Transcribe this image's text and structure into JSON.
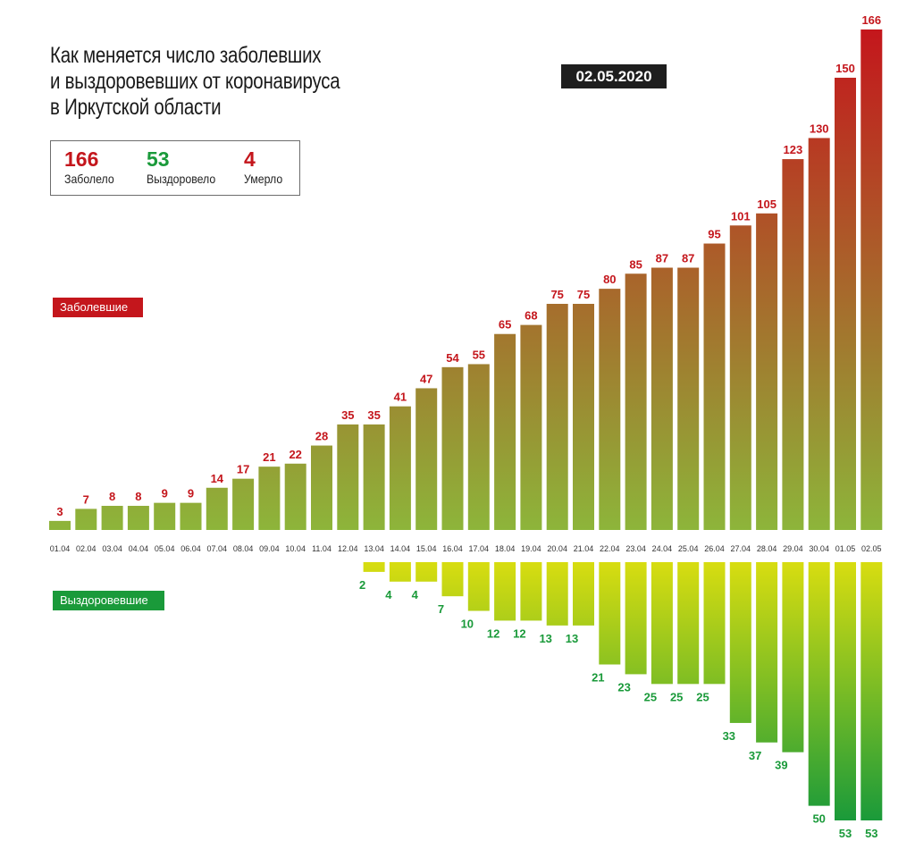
{
  "title": {
    "line1": "Как меняется число заболевших",
    "line2": "и выздоровевших от коронавируса",
    "line3": "в Иркутской области"
  },
  "date": "02.05.2020",
  "summary": {
    "cases": {
      "value": "166",
      "label": "Заболело"
    },
    "recovered": {
      "value": "53",
      "label": "Выздоровело"
    },
    "deaths": {
      "value": "4",
      "label": "Умерло"
    }
  },
  "legend": {
    "cases_label": "Заболевшие",
    "recovered_label": "Выздоровевшие"
  },
  "colors": {
    "cases_top": "#c4161c",
    "cases_bottom": "#8db53a",
    "recovered_top": "#d8dd10",
    "recovered_bottom": "#1a9a3a",
    "cases_text": "#c4161c",
    "recovered_text": "#1a9a3a"
  },
  "chart_data": {
    "type": "bar",
    "categories": [
      "01.04",
      "02.04",
      "03.04",
      "04.04",
      "05.04",
      "06.04",
      "07.04",
      "08.04",
      "09.04",
      "10.04",
      "11.04",
      "12.04",
      "13.04",
      "14.04",
      "15.04",
      "16.04",
      "17.04",
      "18.04",
      "19.04",
      "20.04",
      "21.04",
      "22.04",
      "23.04",
      "24.04",
      "25.04",
      "26.04",
      "27.04",
      "28.04",
      "29.04",
      "30.04",
      "01.05",
      "02.05"
    ],
    "series": [
      {
        "name": "Заболевшие",
        "values": [
          3,
          7,
          8,
          8,
          9,
          9,
          14,
          17,
          21,
          22,
          28,
          35,
          35,
          41,
          47,
          54,
          55,
          65,
          68,
          75,
          75,
          80,
          85,
          87,
          87,
          95,
          101,
          105,
          123,
          130,
          150,
          166
        ]
      },
      {
        "name": "Выздоровевшие",
        "values": [
          null,
          null,
          null,
          null,
          null,
          null,
          null,
          null,
          null,
          null,
          null,
          null,
          2,
          4,
          4,
          7,
          10,
          12,
          12,
          13,
          13,
          21,
          23,
          25,
          25,
          25,
          33,
          37,
          39,
          50,
          53,
          53
        ]
      }
    ],
    "ylim": [
      0,
      166
    ]
  }
}
